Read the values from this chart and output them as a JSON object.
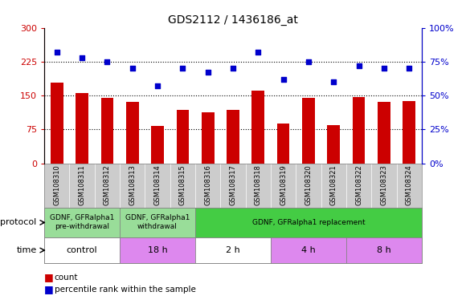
{
  "title": "GDS2112 / 1436186_at",
  "samples": [
    "GSM108310",
    "GSM108311",
    "GSM108312",
    "GSM108313",
    "GSM108314",
    "GSM108315",
    "GSM108316",
    "GSM108317",
    "GSM108318",
    "GSM108319",
    "GSM108320",
    "GSM108321",
    "GSM108322",
    "GSM108323",
    "GSM108324"
  ],
  "bar_values": [
    178,
    155,
    145,
    135,
    82,
    118,
    113,
    118,
    160,
    88,
    145,
    85,
    147,
    135,
    138
  ],
  "dot_values_pct": [
    82,
    78,
    75,
    70,
    57,
    70,
    67,
    70,
    82,
    62,
    75,
    60,
    72,
    70,
    70
  ],
  "bar_color": "#cc0000",
  "dot_color": "#0000cc",
  "ylim_left": [
    0,
    300
  ],
  "ylim_right": [
    0,
    100
  ],
  "yticks_left": [
    0,
    75,
    150,
    225,
    300
  ],
  "yticks_right": [
    0,
    25,
    50,
    75,
    100
  ],
  "ytick_labels_left": [
    "0",
    "75",
    "150",
    "225",
    "300"
  ],
  "ytick_labels_right": [
    "0%",
    "25%",
    "50%",
    "75%",
    "100%"
  ],
  "hlines": [
    75,
    150,
    225
  ],
  "protocol_groups": [
    {
      "label": "GDNF, GFRalpha1\npre-withdrawal",
      "start": 0,
      "end": 3
    },
    {
      "label": "GDNF, GFRalpha1\nwithdrawal",
      "start": 3,
      "end": 6
    },
    {
      "label": "GDNF, GFRalpha1 replacement",
      "start": 6,
      "end": 15
    }
  ],
  "proto_colors": [
    "#99dd99",
    "#99dd99",
    "#44cc44"
  ],
  "time_groups": [
    {
      "label": "control",
      "start": 0,
      "end": 3
    },
    {
      "label": "18 h",
      "start": 3,
      "end": 6
    },
    {
      "label": "2 h",
      "start": 6,
      "end": 9
    },
    {
      "label": "4 h",
      "start": 9,
      "end": 12
    },
    {
      "label": "8 h",
      "start": 12,
      "end": 15
    }
  ],
  "time_colors": [
    "#ffffff",
    "#dd88ee",
    "#ffffff",
    "#dd88ee",
    "#dd88ee"
  ],
  "left_axis_color": "#cc0000",
  "right_axis_color": "#0000cc",
  "sample_bg_color": "#cccccc",
  "legend_items": [
    {
      "color": "#cc0000",
      "label": "count"
    },
    {
      "color": "#0000cc",
      "label": "percentile rank within the sample"
    }
  ]
}
